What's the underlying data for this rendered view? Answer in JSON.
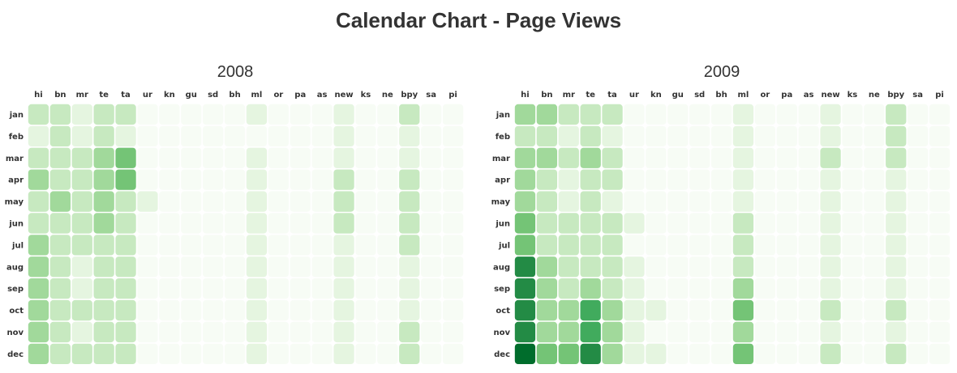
{
  "title": "Calendar Chart - Page Views",
  "colors": [
    "#f7fcf5",
    "#e5f5e0",
    "#c7e9c0",
    "#a1d99b",
    "#74c476",
    "#41ab5d",
    "#238b45",
    "#006d2c"
  ],
  "chart_data": [
    {
      "type": "heatmap",
      "title": "2008",
      "x": [
        "hi",
        "bn",
        "mr",
        "te",
        "ta",
        "ur",
        "kn",
        "gu",
        "sd",
        "bh",
        "ml",
        "or",
        "pa",
        "as",
        "new",
        "ks",
        "ne",
        "bpy",
        "sa",
        "pi"
      ],
      "y": [
        "jan",
        "feb",
        "mar",
        "apr",
        "may",
        "jun",
        "jul",
        "aug",
        "sep",
        "oct",
        "nov",
        "dec"
      ],
      "scale": [
        0,
        7
      ],
      "values": [
        [
          2,
          2,
          1,
          2,
          2,
          0,
          0,
          0,
          0,
          0,
          1,
          0,
          0,
          0,
          1,
          0,
          0,
          2,
          0,
          0
        ],
        [
          1,
          2,
          1,
          2,
          1,
          0,
          0,
          0,
          0,
          0,
          0,
          0,
          0,
          0,
          1,
          0,
          0,
          1,
          0,
          0
        ],
        [
          2,
          2,
          2,
          3,
          4,
          0,
          0,
          0,
          0,
          0,
          1,
          0,
          0,
          0,
          1,
          0,
          0,
          1,
          0,
          0
        ],
        [
          3,
          2,
          2,
          3,
          4,
          0,
          0,
          0,
          0,
          0,
          1,
          0,
          0,
          0,
          2,
          0,
          0,
          2,
          0,
          0
        ],
        [
          2,
          3,
          2,
          3,
          2,
          1,
          0,
          0,
          0,
          0,
          1,
          0,
          0,
          0,
          2,
          0,
          0,
          2,
          0,
          0
        ],
        [
          2,
          2,
          2,
          3,
          2,
          0,
          0,
          0,
          0,
          0,
          1,
          0,
          0,
          0,
          2,
          0,
          0,
          2,
          0,
          0
        ],
        [
          3,
          2,
          2,
          2,
          2,
          0,
          0,
          0,
          0,
          0,
          1,
          0,
          0,
          0,
          1,
          0,
          0,
          2,
          0,
          0
        ],
        [
          3,
          2,
          1,
          2,
          2,
          0,
          0,
          0,
          0,
          0,
          1,
          0,
          0,
          0,
          1,
          0,
          0,
          1,
          0,
          0
        ],
        [
          3,
          2,
          1,
          2,
          2,
          0,
          0,
          0,
          0,
          0,
          1,
          0,
          0,
          0,
          1,
          0,
          0,
          1,
          0,
          0
        ],
        [
          3,
          2,
          2,
          2,
          2,
          0,
          0,
          0,
          0,
          0,
          1,
          0,
          0,
          0,
          1,
          0,
          0,
          1,
          0,
          0
        ],
        [
          3,
          2,
          1,
          2,
          2,
          0,
          0,
          0,
          0,
          0,
          1,
          0,
          0,
          0,
          1,
          0,
          0,
          2,
          0,
          0
        ],
        [
          3,
          2,
          2,
          2,
          2,
          0,
          0,
          0,
          0,
          0,
          1,
          0,
          0,
          0,
          1,
          0,
          0,
          2,
          0,
          0
        ]
      ]
    },
    {
      "type": "heatmap",
      "title": "2009",
      "x": [
        "hi",
        "bn",
        "mr",
        "te",
        "ta",
        "ur",
        "kn",
        "gu",
        "sd",
        "bh",
        "ml",
        "or",
        "pa",
        "as",
        "new",
        "ks",
        "ne",
        "bpy",
        "sa",
        "pi"
      ],
      "y": [
        "jan",
        "feb",
        "mar",
        "apr",
        "may",
        "jun",
        "jul",
        "aug",
        "sep",
        "oct",
        "nov",
        "dec"
      ],
      "scale": [
        0,
        7
      ],
      "values": [
        [
          3,
          3,
          2,
          2,
          2,
          0,
          0,
          0,
          0,
          0,
          1,
          0,
          0,
          0,
          1,
          0,
          0,
          2,
          0,
          0
        ],
        [
          2,
          2,
          1,
          2,
          1,
          0,
          0,
          0,
          0,
          0,
          1,
          0,
          0,
          0,
          1,
          0,
          0,
          2,
          0,
          0
        ],
        [
          3,
          3,
          2,
          3,
          2,
          0,
          0,
          0,
          0,
          0,
          1,
          0,
          0,
          0,
          2,
          0,
          0,
          2,
          0,
          0
        ],
        [
          3,
          2,
          1,
          2,
          2,
          0,
          0,
          0,
          0,
          0,
          1,
          0,
          0,
          0,
          1,
          0,
          0,
          1,
          0,
          0
        ],
        [
          3,
          2,
          1,
          2,
          1,
          0,
          0,
          0,
          0,
          0,
          1,
          0,
          0,
          0,
          1,
          0,
          0,
          1,
          0,
          0
        ],
        [
          4,
          2,
          2,
          2,
          2,
          1,
          0,
          0,
          0,
          0,
          2,
          0,
          0,
          0,
          1,
          0,
          0,
          1,
          0,
          0
        ],
        [
          4,
          2,
          2,
          2,
          2,
          0,
          0,
          0,
          0,
          0,
          2,
          0,
          0,
          0,
          1,
          0,
          0,
          1,
          0,
          0
        ],
        [
          6,
          3,
          2,
          2,
          2,
          1,
          0,
          0,
          0,
          0,
          2,
          0,
          0,
          0,
          1,
          0,
          0,
          1,
          0,
          0
        ],
        [
          6,
          3,
          2,
          3,
          2,
          1,
          0,
          0,
          0,
          0,
          3,
          0,
          0,
          0,
          1,
          0,
          0,
          1,
          0,
          0
        ],
        [
          6,
          3,
          3,
          5,
          3,
          1,
          1,
          0,
          0,
          0,
          4,
          0,
          0,
          0,
          2,
          0,
          0,
          2,
          0,
          0
        ],
        [
          6,
          3,
          3,
          5,
          3,
          1,
          0,
          0,
          0,
          0,
          3,
          0,
          0,
          0,
          1,
          0,
          0,
          1,
          0,
          0
        ],
        [
          7,
          4,
          4,
          6,
          3,
          1,
          1,
          0,
          0,
          0,
          4,
          0,
          0,
          0,
          2,
          0,
          0,
          2,
          0,
          0
        ]
      ]
    }
  ]
}
